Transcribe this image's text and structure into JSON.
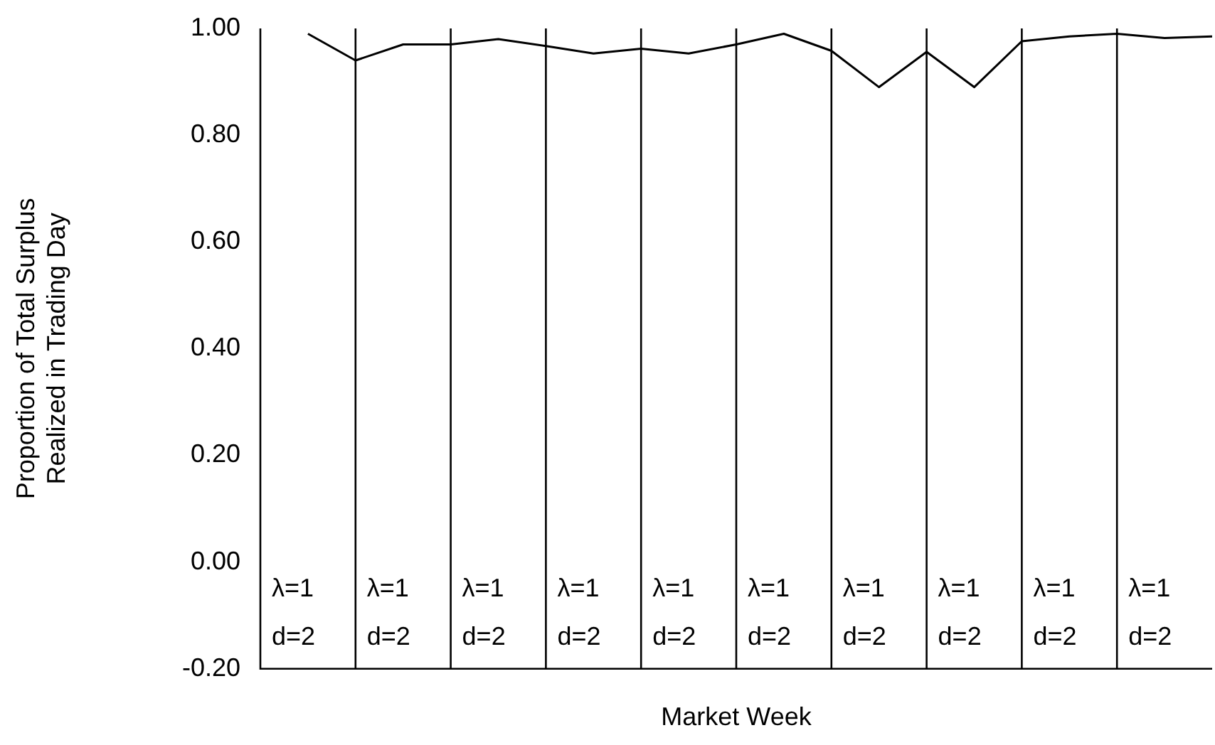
{
  "chart_data": {
    "type": "line",
    "xlabel": "Market Week",
    "ylabel": "Proportion of Total Surplus\nRealized in Trading Day",
    "categories": [
      null,
      null,
      null,
      null,
      null,
      null,
      null,
      null,
      null,
      null,
      null,
      null,
      null,
      null,
      null,
      null,
      null,
      null,
      null,
      null
    ],
    "series": [
      {
        "color": "#000000",
        "values": [
          0.99,
          0.94,
          0.97,
          0.97,
          0.98,
          0.967,
          0.953,
          0.962,
          0.953,
          0.97,
          0.99,
          0.958,
          0.89,
          0.956,
          0.89,
          0.976,
          0.985,
          0.99,
          0.982,
          0.985
        ]
      }
    ],
    "ylim": [
      -0.2,
      1
    ],
    "yticks": [
      {
        "value": -0.2,
        "label": "-0.20"
      },
      {
        "value": 0,
        "label": "0.00"
      },
      {
        "value": 0.2,
        "label": "0.20"
      },
      {
        "value": 0.4,
        "label": "0.40"
      },
      {
        "value": 0.6,
        "label": "0.60"
      },
      {
        "value": 0.8,
        "label": "0.80"
      },
      {
        "value": 1,
        "label": "1.00"
      }
    ],
    "tick_labels": "y",
    "grid": "x",
    "legend": false,
    "marker": "none",
    "line_style": "solid",
    "annotations": [
      "λ=1\nd=2",
      "λ=1\nd=2",
      "λ=1\nd=2",
      "λ=1\nd=2",
      "λ=1\nd=2",
      "λ=1\nd=2",
      "λ=1\nd=2",
      "λ=1\nd=2",
      "λ=1\nd=2",
      "λ=1\nd=2"
    ]
  }
}
